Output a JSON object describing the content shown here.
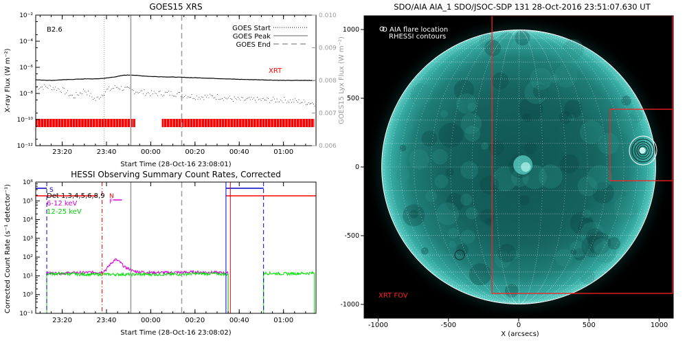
{
  "colors": {
    "goes_flux": "#000000",
    "xrt_red": "#ff0000",
    "grey": "#9a9a9a",
    "magenta": "#d400d4",
    "green": "#00e000",
    "blue": "#0000c8",
    "sun_cyan": "#1a8a86"
  },
  "chart_data": [
    {
      "type": "line",
      "title": "GOES15 XRS",
      "xlabel": "Start Time (28-Oct-16 23:08:01)",
      "ylabel": "X-ray Flux (W m⁻²)",
      "y2label": "GOES15 Lyx Flux (W m⁻²)",
      "x_ticks": [
        "23:20",
        "23:40",
        "00:00",
        "00:20",
        "00:40",
        "01:00"
      ],
      "y_ticks": [
        "10⁻²",
        "10⁻⁴",
        "10⁻⁶",
        "10⁻⁸",
        "10⁻¹⁰",
        "10⁻¹²"
      ],
      "y2_ticks": [
        "0.010",
        "0.009",
        "0.008",
        "0.007",
        "0.006"
      ],
      "y_scale": "log",
      "ylim": [
        1e-12,
        0.01
      ],
      "y2lim": [
        0.006,
        0.01
      ],
      "class_label": "B2.6",
      "xrt_label": "XRT",
      "legend": [
        {
          "label": "GOES Start",
          "style": "dotted"
        },
        {
          "label": "GOES Peak",
          "style": "solid"
        },
        {
          "label": "GOES End",
          "style": "dashed"
        }
      ],
      "legend_position": "top-right",
      "series": [
        {
          "name": "GOES flux",
          "x": [
            "23:08",
            "23:15",
            "23:20",
            "23:25",
            "23:30",
            "23:35",
            "23:40",
            "23:45",
            "23:48",
            "23:51",
            "23:55",
            "00:00",
            "00:10",
            "00:20",
            "00:30",
            "00:40",
            "00:50",
            "01:00",
            "01:14"
          ],
          "y": [
            1.1e-07,
            1e-07,
            1.1e-07,
            1.2e-07,
            1.3e-07,
            1.3e-07,
            1.5e-07,
            2e-07,
            2.5e-07,
            2.6e-07,
            2.3e-07,
            2e-07,
            1.8e-07,
            1.6e-07,
            1.4e-07,
            1.2e-07,
            1.1e-07,
            1e-07,
            1e-07
          ]
        },
        {
          "name": "Lyx flux",
          "x": [
            "23:08",
            "23:15",
            "23:20",
            "23:25",
            "23:30",
            "23:35",
            "23:40",
            "23:45",
            "23:50",
            "00:00",
            "00:10",
            "00:20",
            "00:30",
            "00:40",
            "00:50",
            "01:00",
            "01:14"
          ],
          "y": [
            0.0078,
            0.0078,
            0.0077,
            0.0075,
            0.0077,
            0.0074,
            0.0077,
            0.0078,
            0.0077,
            0.0076,
            0.0076,
            0.0075,
            0.0075,
            0.0074,
            0.0074,
            0.0074,
            0.0073
          ]
        }
      ],
      "markers": {
        "goes_start": "23:39",
        "goes_peak": "23:51",
        "goes_end": "00:14"
      },
      "xrt_coverage": [
        [
          "23:08",
          "23:53"
        ],
        [
          "00:05",
          "01:14"
        ]
      ]
    },
    {
      "type": "line",
      "title": "HESSI Observing Summary Count Rates, Corrected",
      "xlabel": "Start Time (28-Oct-16 23:08:02)",
      "ylabel": "Corrected Count Rate (s⁻¹ detector⁻¹)",
      "x_ticks": [
        "23:20",
        "23:40",
        "00:00",
        "00:20",
        "00:40",
        "01:00"
      ],
      "y_ticks": [
        "10⁶",
        "10⁵",
        "10⁴",
        "10³",
        "10²",
        "10¹",
        "10⁰",
        "10⁻¹"
      ],
      "y_scale": "log",
      "ylim": [
        0.1,
        1000000.0
      ],
      "legend": [
        {
          "label": "Det 1,3,4,5,6,8,9",
          "color": "#000000"
        },
        {
          "label": "6-12 keV",
          "color": "#d400d4"
        },
        {
          "label": "12-25 keV",
          "color": "#00e000"
        }
      ],
      "flag_labels": {
        "s": "S",
        "n": "N",
        "f": "F"
      },
      "series": [
        {
          "name": "6-12 keV",
          "x": [
            "23:13",
            "23:20",
            "23:30",
            "23:38",
            "23:40",
            "23:42",
            "23:44",
            "23:46",
            "23:48",
            "23:52",
            "23:56",
            "00:00",
            "00:10",
            "00:20",
            "00:30",
            "00:35"
          ],
          "y": [
            14,
            14,
            15,
            16,
            22,
            45,
            75,
            55,
            30,
            18,
            16,
            15,
            15,
            16,
            15,
            14
          ]
        },
        {
          "name": "12-25 keV",
          "x": [
            "23:13",
            "23:20",
            "23:30",
            "23:40",
            "23:50",
            "00:00",
            "00:10",
            "00:20",
            "00:30",
            "00:35",
            "00:51",
            "01:00",
            "01:14"
          ],
          "y": [
            13,
            13,
            12,
            12,
            12,
            12,
            12,
            13,
            13,
            12,
            14,
            13,
            14
          ]
        }
      ],
      "markers": {
        "goes_start": "23:39",
        "goes_peak": "23:51",
        "goes_end": "00:14"
      }
    },
    {
      "type": "image",
      "title": "SDO/AIA AIA_1 SDO/JSOC-SDP 131 28-Oct-2016 23:51:07.630 UT",
      "xlabel": "X (arcsecs)",
      "x_ticks": [
        "-1000",
        "-500",
        "0",
        "500",
        "1000"
      ],
      "y_ticks": [
        "1000",
        "500",
        "0",
        "-500",
        "-1000"
      ],
      "xlim": [
        -1100,
        1100
      ],
      "ylim": [
        -1100,
        1100
      ],
      "legend": [
        "O AIA flare location",
        "RHESSI contours"
      ],
      "xrt_fov_label": "XRT FOV",
      "flare_location": [
        880,
        120
      ]
    }
  ]
}
